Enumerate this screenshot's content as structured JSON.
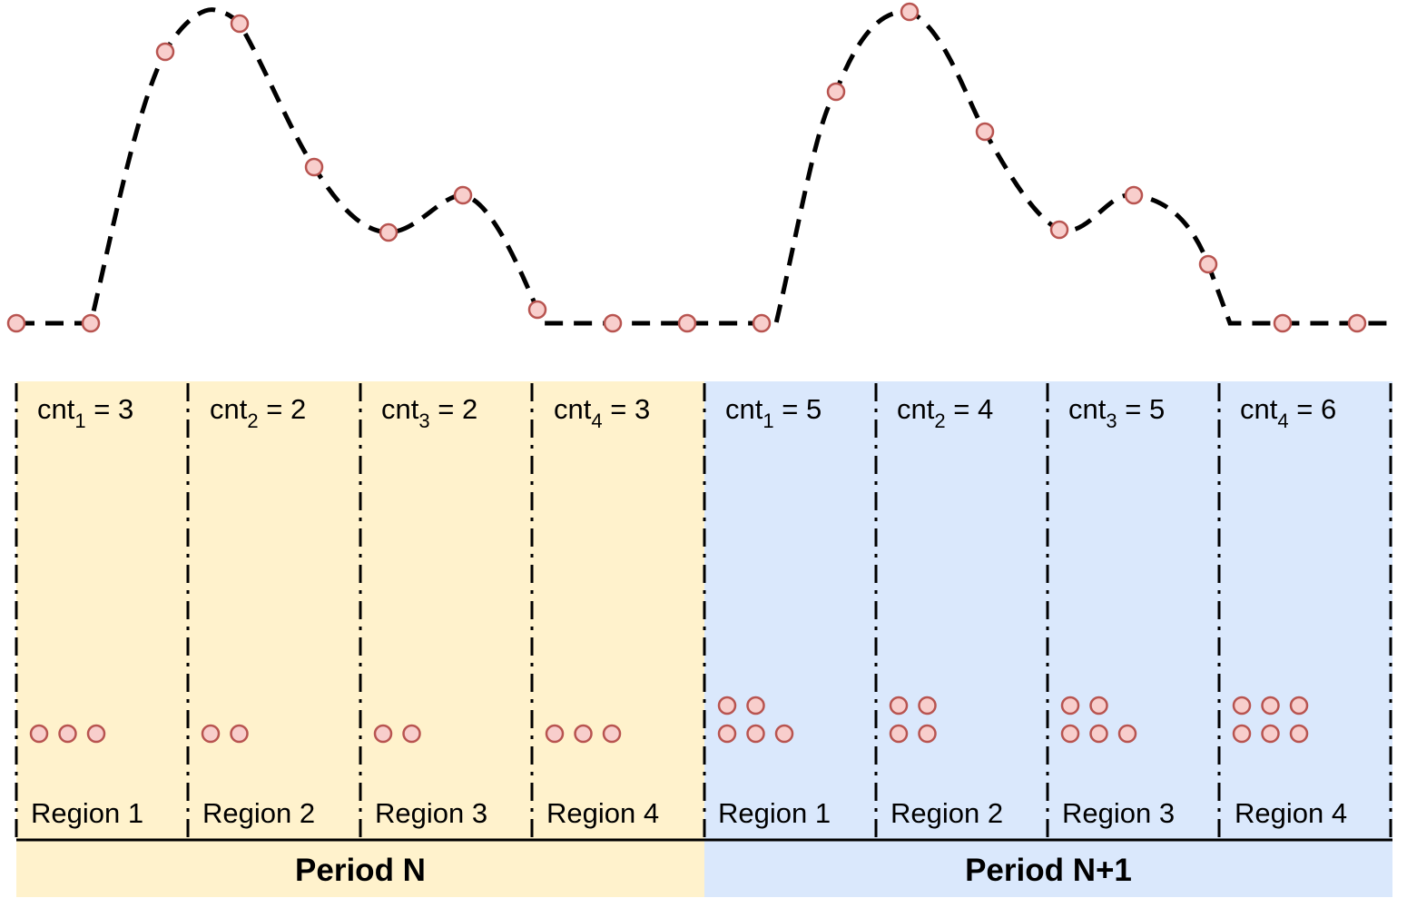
{
  "colors": {
    "period_n_fill": "#fff2cc",
    "period_n1_fill": "#dae8fc",
    "dot_fill": "#f8cecc",
    "dot_stroke": "#b85450",
    "line": "#000000"
  },
  "periods": [
    {
      "label": "Period N",
      "regions": [
        {
          "label": "Region 1",
          "cnt_base": "cnt",
          "cnt_index": "1",
          "cnt_value": "= 3",
          "count": 3
        },
        {
          "label": "Region 2",
          "cnt_base": "cnt",
          "cnt_index": "2",
          "cnt_value": "= 2",
          "count": 2
        },
        {
          "label": "Region 3",
          "cnt_base": "cnt",
          "cnt_index": "3",
          "cnt_value": "= 2",
          "count": 2
        },
        {
          "label": "Region 4",
          "cnt_base": "cnt",
          "cnt_index": "4",
          "cnt_value": "= 3",
          "count": 3
        }
      ]
    },
    {
      "label": "Period N+1",
      "regions": [
        {
          "label": "Region 1",
          "cnt_base": "cnt",
          "cnt_index": "1",
          "cnt_value": "= 5",
          "count": 5
        },
        {
          "label": "Region 2",
          "cnt_base": "cnt",
          "cnt_index": "2",
          "cnt_value": "= 4",
          "count": 4
        },
        {
          "label": "Region 3",
          "cnt_base": "cnt",
          "cnt_index": "3",
          "cnt_value": "= 5",
          "count": 5
        },
        {
          "label": "Region 4",
          "cnt_base": "cnt",
          "cnt_index": "4",
          "cnt_value": "= 6",
          "count": 6
        }
      ]
    }
  ]
}
